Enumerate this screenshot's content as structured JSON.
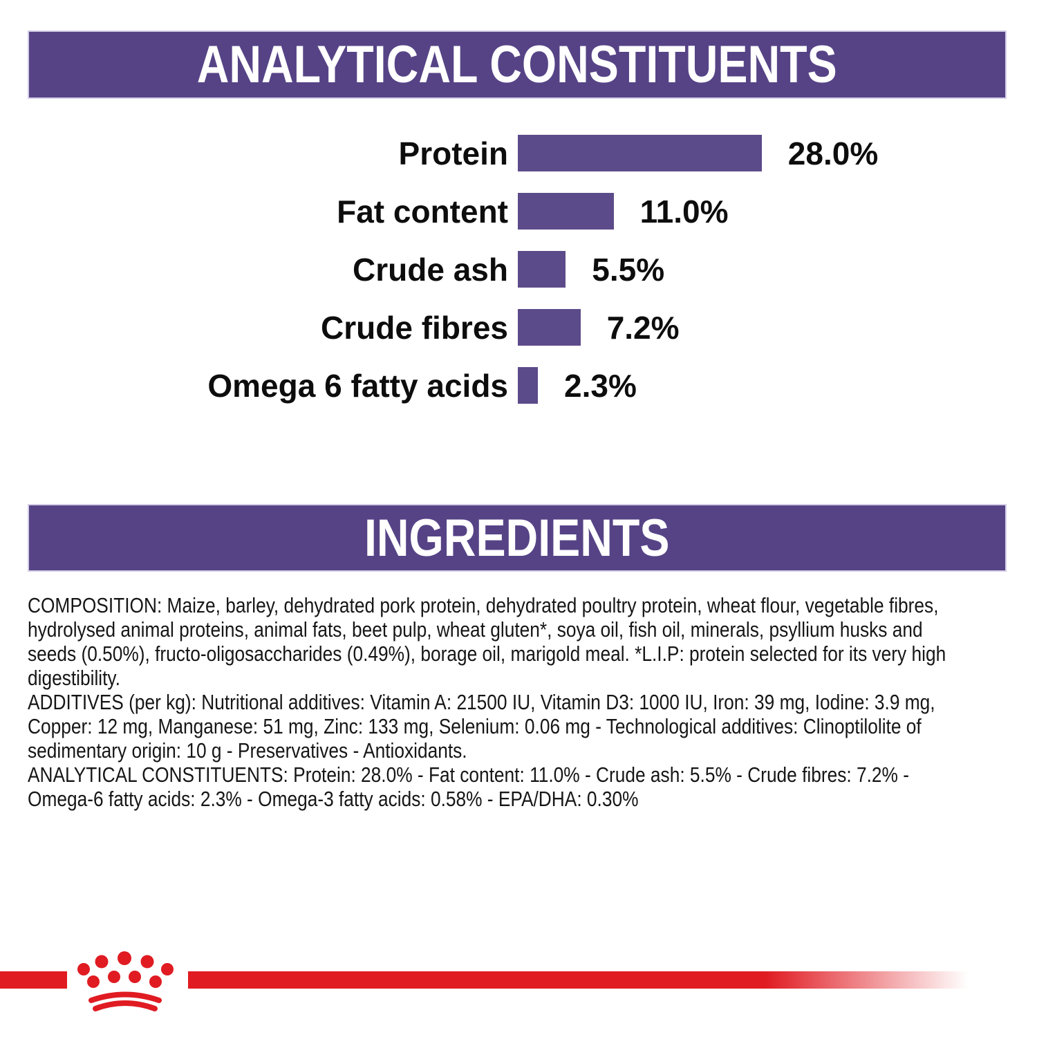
{
  "analytical_section": {
    "title": "ANALYTICAL CONSTITUENTS"
  },
  "chart_data": {
    "type": "bar",
    "orientation": "horizontal",
    "title": "ANALYTICAL CONSTITUENTS",
    "categories": [
      "Protein",
      "Fat content",
      "Crude ash",
      "Crude fibres",
      "Omega 6 fatty acids"
    ],
    "values": [
      28.0,
      11.0,
      5.5,
      7.2,
      2.3
    ],
    "unit": "%",
    "value_labels": [
      "28.0%",
      "11.0%",
      "5.5%",
      "7.2%",
      "2.3%"
    ],
    "bar_color": "#5c4b8a",
    "axis": "none",
    "legend": "none",
    "data_labels_position": "right-of-bar"
  },
  "ingredients_section": {
    "title": "INGREDIENTS",
    "paragraphs": [
      {
        "name": "composition",
        "lines": [
          "COMPOSITION: Maize, barley, dehydrated pork protein, dehydrated poultry protein, wheat flour, vegetable fibres,",
          "hydrolysed animal proteins, animal fats, beet pulp, wheat gluten*, soya oil, fish oil, minerals, psyllium husks and",
          "seeds (0.50%), fructo-oligosaccharides (0.49%), borage oil, marigold meal. *L.I.P: protein selected for its very high",
          "digestibility."
        ]
      },
      {
        "name": "additives",
        "lines": [
          "ADDITIVES (per kg): Nutritional additives: Vitamin A: 21500 IU, Vitamin D3: 1000 IU, Iron: 39 mg, Iodine: 3.9 mg,",
          "Copper: 12 mg, Manganese: 51 mg, Zinc: 133 mg, Selenium: 0.06 mg - Technological additives: Clinoptilolite of",
          "sedimentary origin: 10 g - Preservatives - Antioxidants."
        ]
      },
      {
        "name": "analytical-constituents",
        "lines": [
          "ANALYTICAL CONSTITUENTS: Protein: 28.0% - Fat content: 11.0% - Crude ash: 5.5% - Crude fibres: 7.2% -",
          "Omega-6 fatty acids: 2.3% - Omega-3 fatty acids: 0.58% - EPA/DHA: 0.30%"
        ]
      }
    ]
  },
  "brand": {
    "logo": "royal-canin-crown"
  },
  "colors": {
    "banner_purple": "#564386",
    "bar_purple": "#5c4b8a",
    "brand_red": "#e01b22",
    "text": "#161616"
  }
}
